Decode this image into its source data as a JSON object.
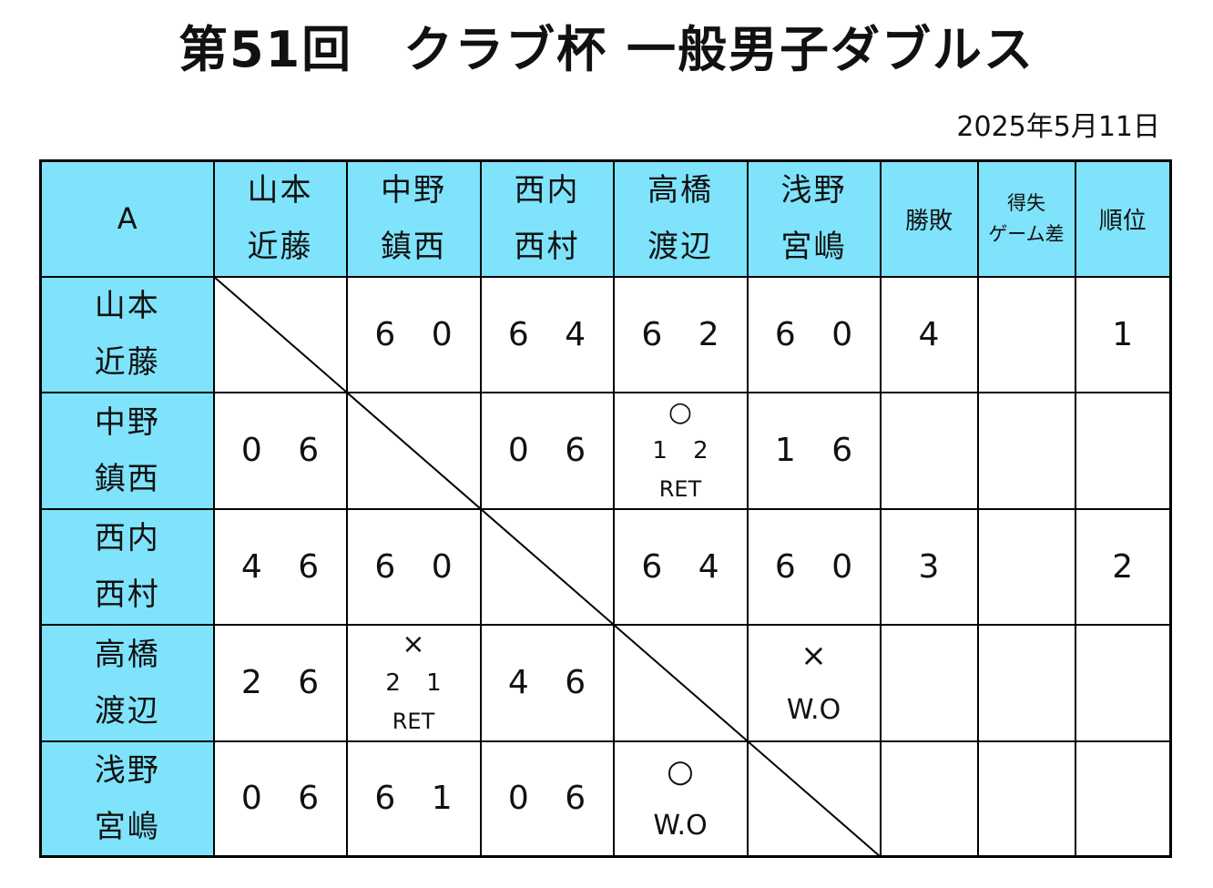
{
  "title": "第51回　クラブ杯 一般男子ダブルス",
  "date": "2025年5月11日",
  "table": {
    "group": "A",
    "teams": [
      [
        "山本",
        "近藤"
      ],
      [
        "中野",
        "鎮西"
      ],
      [
        "西内",
        "西村"
      ],
      [
        "高橋",
        "渡辺"
      ],
      [
        "浅野",
        "宮嶋"
      ]
    ],
    "headers": {
      "wins": "勝敗",
      "diff_line1": "得失",
      "diff_line2": "ゲーム差",
      "rank": "順位"
    },
    "rows": [
      {
        "cells": [
          null,
          {
            "score": "6 0"
          },
          {
            "score": "6 4"
          },
          {
            "score": "6 2"
          },
          {
            "score": "6 0"
          }
        ],
        "wins": "4",
        "diff": "",
        "rank": "1"
      },
      {
        "cells": [
          {
            "score": "0 6"
          },
          null,
          {
            "score": "0 6"
          },
          {
            "symbol": "○",
            "score": "1 2",
            "note": "RET"
          },
          {
            "score": "1 6"
          }
        ],
        "wins": "",
        "diff": "",
        "rank": ""
      },
      {
        "cells": [
          {
            "score": "4 6"
          },
          {
            "score": "6 0"
          },
          null,
          {
            "score": "6 4"
          },
          {
            "score": "6 0"
          }
        ],
        "wins": "3",
        "diff": "",
        "rank": "2"
      },
      {
        "cells": [
          {
            "score": "2 6"
          },
          {
            "symbol": "×",
            "score": "2 1",
            "note": "RET"
          },
          {
            "score": "4 6"
          },
          null,
          {
            "symbol": "×",
            "note": "W.O"
          }
        ],
        "wins": "",
        "diff": "",
        "rank": ""
      },
      {
        "cells": [
          {
            "score": "0 6"
          },
          {
            "score": "6 1"
          },
          {
            "score": "0 6"
          },
          {
            "symbol": "○",
            "note": "W.O"
          },
          null
        ],
        "wins": "",
        "diff": "",
        "rank": ""
      }
    ]
  },
  "colors": {
    "header_bg": "#7fe3fb",
    "border": "#000000"
  }
}
